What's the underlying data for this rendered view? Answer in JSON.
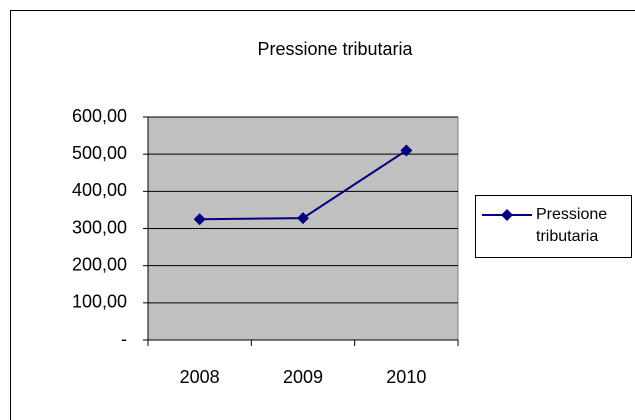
{
  "chart_data": {
    "type": "line",
    "title": "Pressione tributaria",
    "categories": [
      "2008",
      "2009",
      "2010"
    ],
    "series": [
      {
        "name": "Pressione tributaria",
        "color": "#000080",
        "values": [
          325,
          328,
          510
        ]
      }
    ],
    "ylim": [
      0,
      600
    ],
    "yticks": [
      {
        "value": 0,
        "label": "-"
      },
      {
        "value": 100,
        "label": "100,00"
      },
      {
        "value": 200,
        "label": "200,00"
      },
      {
        "value": 300,
        "label": "300,00"
      },
      {
        "value": 400,
        "label": "400,00"
      },
      {
        "value": 500,
        "label": "500,00"
      },
      {
        "value": 600,
        "label": "600,00"
      }
    ],
    "grid": true,
    "legend": "right"
  }
}
